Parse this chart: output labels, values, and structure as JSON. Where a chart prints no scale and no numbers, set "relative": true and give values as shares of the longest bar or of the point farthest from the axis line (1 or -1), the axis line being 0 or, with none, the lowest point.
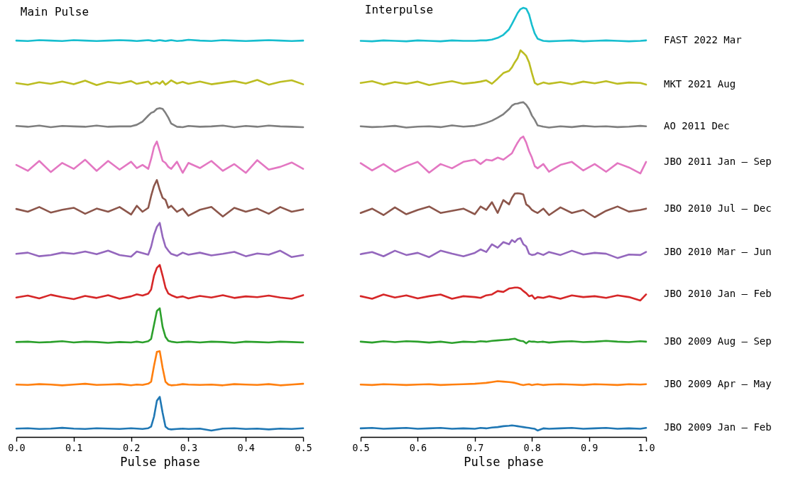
{
  "chart_data": [
    {
      "type": "line",
      "title": "Main Pulse",
      "xlabel": "Pulse phase",
      "relative": true,
      "tick_labels": "x",
      "line_style": "solid",
      "xlim": [
        0,
        0.5
      ],
      "xticks": [
        {
          "value": 0,
          "label": "0.0"
        },
        0.1,
        0.2,
        0.3,
        0.4,
        0.5
      ],
      "x": [
        0,
        0.02,
        0.04,
        0.06,
        0.08,
        0.1,
        0.12,
        0.14,
        0.16,
        0.18,
        0.2,
        0.21,
        0.22,
        0.23,
        0.235,
        0.24,
        0.245,
        0.25,
        0.255,
        0.26,
        0.265,
        0.27,
        0.28,
        0.29,
        0.3,
        0.32,
        0.34,
        0.36,
        0.38,
        0.4,
        0.42,
        0.44,
        0.46,
        0.48,
        0.5
      ],
      "series": [
        {
          "color": "#1f77b4",
          "values": [
            0.021,
            0.022,
            0.02,
            0.021,
            0.023,
            0.021,
            0.02,
            0.022,
            0.021,
            0.02,
            0.022,
            0.021,
            0.02,
            0.022,
            0.026,
            0.051,
            0.091,
            0.101,
            0.061,
            0.026,
            0.02,
            0.019,
            0.02,
            0.021,
            0.02,
            0.021,
            0.016,
            0.021,
            0.022,
            0.02,
            0.021,
            0.019,
            0.021,
            0.02,
            0.022
          ]
        },
        {
          "color": "#ff7f0e",
          "values": [
            0.132,
            0.131,
            0.133,
            0.132,
            0.13,
            0.132,
            0.134,
            0.131,
            0.132,
            0.133,
            0.13,
            0.132,
            0.131,
            0.134,
            0.139,
            0.179,
            0.214,
            0.216,
            0.174,
            0.139,
            0.132,
            0.13,
            0.131,
            0.133,
            0.132,
            0.131,
            0.132,
            0.13,
            0.133,
            0.132,
            0.131,
            0.133,
            0.13,
            0.132,
            0.134
          ]
        },
        {
          "color": "#2ca02c",
          "values": [
            0.239,
            0.24,
            0.238,
            0.239,
            0.241,
            0.238,
            0.24,
            0.239,
            0.237,
            0.239,
            0.238,
            0.24,
            0.238,
            0.241,
            0.247,
            0.282,
            0.317,
            0.324,
            0.277,
            0.252,
            0.242,
            0.24,
            0.238,
            0.239,
            0.24,
            0.238,
            0.24,
            0.239,
            0.237,
            0.24,
            0.239,
            0.238,
            0.24,
            0.239,
            0.238
          ]
        },
        {
          "color": "#d62728",
          "values": [
            0.351,
            0.356,
            0.349,
            0.358,
            0.352,
            0.347,
            0.355,
            0.35,
            0.357,
            0.348,
            0.354,
            0.359,
            0.356,
            0.361,
            0.371,
            0.406,
            0.426,
            0.433,
            0.406,
            0.376,
            0.361,
            0.357,
            0.351,
            0.354,
            0.349,
            0.355,
            0.351,
            0.357,
            0.35,
            0.354,
            0.352,
            0.356,
            0.351,
            0.348,
            0.357
          ]
        },
        {
          "color": "#9467bd",
          "values": [
            0.461,
            0.464,
            0.455,
            0.458,
            0.464,
            0.461,
            0.467,
            0.46,
            0.469,
            0.458,
            0.454,
            0.467,
            0.463,
            0.459,
            0.479,
            0.509,
            0.529,
            0.539,
            0.504,
            0.479,
            0.469,
            0.461,
            0.456,
            0.464,
            0.459,
            0.464,
            0.457,
            0.461,
            0.466,
            0.455,
            0.462,
            0.459,
            0.469,
            0.453,
            0.458
          ]
        },
        {
          "color": "#8c564b",
          "values": [
            0.574,
            0.567,
            0.579,
            0.565,
            0.572,
            0.577,
            0.562,
            0.575,
            0.567,
            0.579,
            0.56,
            0.582,
            0.567,
            0.577,
            0.607,
            0.632,
            0.647,
            0.622,
            0.602,
            0.597,
            0.577,
            0.582,
            0.567,
            0.575,
            0.557,
            0.572,
            0.579,
            0.555,
            0.577,
            0.567,
            0.575,
            0.562,
            0.579,
            0.567,
            0.573
          ]
        },
        {
          "color": "#e377c2",
          "values": [
            0.685,
            0.67,
            0.695,
            0.667,
            0.69,
            0.675,
            0.698,
            0.67,
            0.695,
            0.673,
            0.693,
            0.677,
            0.685,
            0.675,
            0.7,
            0.73,
            0.744,
            0.72,
            0.695,
            0.69,
            0.68,
            0.675,
            0.693,
            0.665,
            0.69,
            0.677,
            0.695,
            0.67,
            0.687,
            0.665,
            0.697,
            0.673,
            0.68,
            0.691,
            0.675
          ]
        },
        {
          "color": "#7f7f7f",
          "values": [
            0.783,
            0.781,
            0.784,
            0.78,
            0.783,
            0.782,
            0.781,
            0.784,
            0.781,
            0.782,
            0.782,
            0.786,
            0.794,
            0.809,
            0.816,
            0.819,
            0.826,
            0.828,
            0.826,
            0.816,
            0.804,
            0.789,
            0.781,
            0.78,
            0.783,
            0.781,
            0.782,
            0.784,
            0.78,
            0.783,
            0.781,
            0.784,
            0.782,
            0.781,
            0.78
          ]
        },
        {
          "color": "#bcbd22",
          "values": [
            0.891,
            0.887,
            0.893,
            0.889,
            0.895,
            0.888,
            0.897,
            0.886,
            0.894,
            0.89,
            0.896,
            0.889,
            0.892,
            0.895,
            0.888,
            0.891,
            0.893,
            0.889,
            0.896,
            0.887,
            0.892,
            0.898,
            0.89,
            0.894,
            0.889,
            0.895,
            0.888,
            0.892,
            0.896,
            0.89,
            0.899,
            0.887,
            0.894,
            0.898,
            0.888
          ]
        },
        {
          "color": "#17becf",
          "values": [
            0.998,
            0.997,
            0.999,
            0.998,
            0.997,
            0.999,
            0.998,
            0.997,
            0.998,
            0.999,
            0.998,
            0.997,
            0.998,
            0.999,
            0.998,
            0.997,
            0.998,
            0.999,
            0.998,
            0.997,
            0.998,
            0.999,
            0.997,
            0.998,
            1.0,
            0.998,
            0.997,
            0.999,
            0.998,
            0.997,
            0.998,
            0.999,
            0.998,
            0.997,
            0.998
          ]
        }
      ]
    },
    {
      "type": "line",
      "title": "Interpulse",
      "xlabel": "Pulse phase",
      "relative": true,
      "tick_labels": "x",
      "line_style": "solid",
      "xlim": [
        0.5,
        1.0
      ],
      "xticks": [
        0.5,
        0.6,
        0.7,
        0.8,
        0.9,
        {
          "value": 1,
          "label": "1.0"
        }
      ],
      "x": [
        0.5,
        0.52,
        0.54,
        0.56,
        0.58,
        0.6,
        0.62,
        0.64,
        0.66,
        0.68,
        0.7,
        0.71,
        0.72,
        0.73,
        0.74,
        0.75,
        0.76,
        0.765,
        0.77,
        0.775,
        0.78,
        0.785,
        0.79,
        0.795,
        0.8,
        0.805,
        0.81,
        0.82,
        0.83,
        0.85,
        0.87,
        0.89,
        0.91,
        0.93,
        0.95,
        0.97,
        0.99,
        1.0
      ],
      "series": [
        {
          "name": "JBO 2009 Jan – Feb",
          "color": "#1f77b4",
          "values": [
            0.02,
            0.021,
            0.019,
            0.02,
            0.021,
            0.019,
            0.02,
            0.021,
            0.019,
            0.02,
            0.019,
            0.021,
            0.02,
            0.022,
            0.023,
            0.025,
            0.026,
            0.027,
            0.026,
            0.025,
            0.024,
            0.023,
            0.022,
            0.021,
            0.02,
            0.019,
            0.015,
            0.02,
            0.019,
            0.02,
            0.021,
            0.019,
            0.02,
            0.021,
            0.019,
            0.02,
            0.019,
            0.021
          ]
        },
        {
          "name": "JBO 2009 Apr – May",
          "color": "#ff7f0e",
          "values": [
            0.122,
            0.121,
            0.123,
            0.122,
            0.121,
            0.122,
            0.123,
            0.121,
            0.122,
            0.123,
            0.124,
            0.125,
            0.126,
            0.128,
            0.13,
            0.129,
            0.128,
            0.127,
            0.126,
            0.124,
            0.122,
            0.121,
            0.122,
            0.123,
            0.121,
            0.122,
            0.123,
            0.121,
            0.122,
            0.123,
            0.122,
            0.121,
            0.123,
            0.122,
            0.121,
            0.123,
            0.122,
            0.123
          ]
        },
        {
          "name": "JBO 2009 Aug – Sep",
          "color": "#2ca02c",
          "values": [
            0.222,
            0.22,
            0.223,
            0.221,
            0.223,
            0.222,
            0.22,
            0.222,
            0.219,
            0.222,
            0.221,
            0.223,
            0.222,
            0.224,
            0.225,
            0.226,
            0.227,
            0.228,
            0.229,
            0.226,
            0.224,
            0.223,
            0.218,
            0.223,
            0.222,
            0.222,
            0.221,
            0.222,
            0.22,
            0.222,
            0.223,
            0.221,
            0.222,
            0.224,
            0.222,
            0.221,
            0.223,
            0.222
          ]
        },
        {
          "name": "JBO 2010 Jan – Feb",
          "color": "#d62728",
          "values": [
            0.328,
            0.322,
            0.332,
            0.325,
            0.33,
            0.323,
            0.328,
            0.332,
            0.322,
            0.328,
            0.326,
            0.324,
            0.33,
            0.332,
            0.34,
            0.338,
            0.346,
            0.347,
            0.348,
            0.348,
            0.346,
            0.34,
            0.335,
            0.328,
            0.33,
            0.322,
            0.326,
            0.324,
            0.328,
            0.322,
            0.33,
            0.326,
            0.328,
            0.324,
            0.33,
            0.326,
            0.318,
            0.332
          ]
        },
        {
          "name": "JBO 2010 Mar – Jun",
          "color": "#9467bd",
          "values": [
            0.426,
            0.431,
            0.421,
            0.434,
            0.424,
            0.429,
            0.419,
            0.434,
            0.427,
            0.421,
            0.429,
            0.437,
            0.431,
            0.449,
            0.441,
            0.454,
            0.449,
            0.459,
            0.454,
            0.461,
            0.463,
            0.449,
            0.444,
            0.427,
            0.424,
            0.425,
            0.429,
            0.424,
            0.431,
            0.424,
            0.434,
            0.425,
            0.429,
            0.427,
            0.417,
            0.425,
            0.424,
            0.431
          ]
        },
        {
          "name": "JBO 2010 Jul – Dec",
          "color": "#8c564b",
          "values": [
            0.522,
            0.532,
            0.517,
            0.535,
            0.519,
            0.529,
            0.537,
            0.522,
            0.527,
            0.532,
            0.519,
            0.537,
            0.529,
            0.547,
            0.522,
            0.552,
            0.542,
            0.557,
            0.567,
            0.568,
            0.567,
            0.565,
            0.542,
            0.537,
            0.529,
            0.525,
            0.522,
            0.532,
            0.517,
            0.535,
            0.522,
            0.529,
            0.512,
            0.527,
            0.537,
            0.525,
            0.529,
            0.532
          ]
        },
        {
          "name": "JBO 2011 Jan – Sep",
          "color": "#e377c2",
          "values": [
            0.638,
            0.621,
            0.636,
            0.618,
            0.631,
            0.641,
            0.616,
            0.636,
            0.626,
            0.641,
            0.646,
            0.636,
            0.646,
            0.644,
            0.651,
            0.646,
            0.656,
            0.661,
            0.674,
            0.686,
            0.696,
            0.7,
            0.686,
            0.666,
            0.651,
            0.631,
            0.626,
            0.636,
            0.618,
            0.634,
            0.641,
            0.621,
            0.636,
            0.618,
            0.638,
            0.628,
            0.614,
            0.641
          ]
        },
        {
          "name": "AO 2011 Dec",
          "color": "#7f7f7f",
          "values": [
            0.724,
            0.722,
            0.723,
            0.725,
            0.721,
            0.723,
            0.724,
            0.722,
            0.726,
            0.723,
            0.725,
            0.728,
            0.732,
            0.737,
            0.744,
            0.752,
            0.764,
            0.772,
            0.776,
            0.777,
            0.779,
            0.78,
            0.774,
            0.764,
            0.749,
            0.739,
            0.726,
            0.723,
            0.721,
            0.724,
            0.722,
            0.725,
            0.723,
            0.724,
            0.722,
            0.723,
            0.725,
            0.724
          ]
        },
        {
          "name": "MKT 2021 Aug",
          "color": "#bcbd22",
          "values": [
            0.825,
            0.829,
            0.821,
            0.827,
            0.823,
            0.828,
            0.82,
            0.825,
            0.829,
            0.823,
            0.826,
            0.828,
            0.831,
            0.823,
            0.835,
            0.848,
            0.853,
            0.861,
            0.873,
            0.883,
            0.901,
            0.895,
            0.888,
            0.873,
            0.848,
            0.825,
            0.821,
            0.826,
            0.823,
            0.827,
            0.822,
            0.828,
            0.824,
            0.829,
            0.823,
            0.826,
            0.825,
            0.821
          ]
        },
        {
          "name": "FAST 2022 Mar",
          "color": "#17becf",
          "values": [
            0.923,
            0.922,
            0.924,
            0.923,
            0.922,
            0.924,
            0.923,
            0.922,
            0.924,
            0.923,
            0.923,
            0.924,
            0.924,
            0.926,
            0.93,
            0.937,
            0.95,
            0.962,
            0.975,
            0.988,
            0.997,
            1.0,
            0.998,
            0.985,
            0.96,
            0.94,
            0.928,
            0.923,
            0.922,
            0.923,
            0.924,
            0.922,
            0.923,
            0.924,
            0.923,
            0.922,
            0.923,
            0.924
          ]
        }
      ]
    }
  ]
}
